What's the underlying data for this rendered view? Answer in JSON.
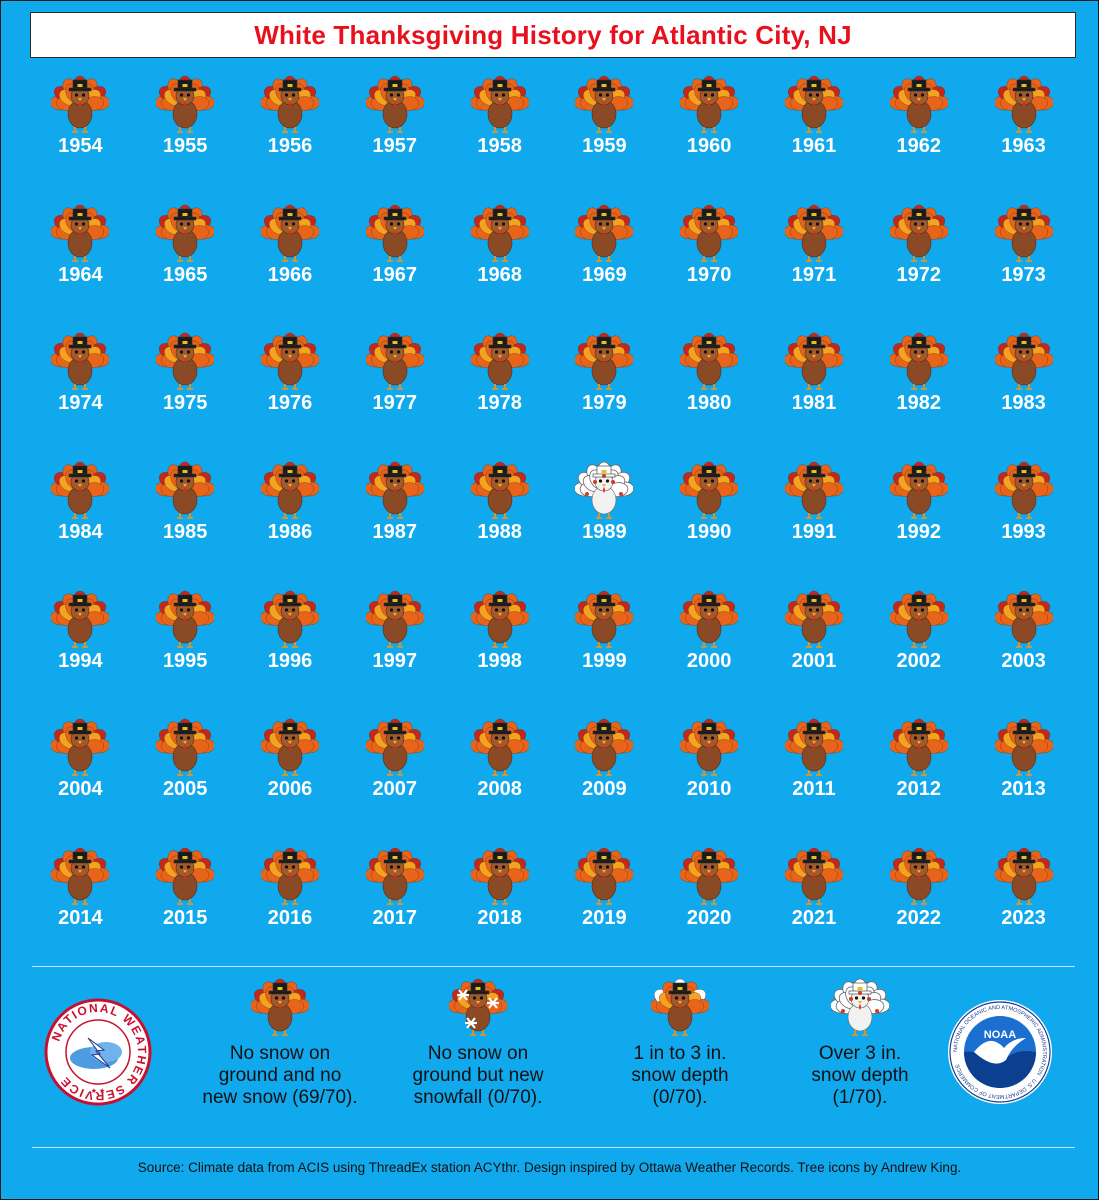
{
  "title": "White Thanksgiving History for Atlantic City, NJ",
  "years": [
    {
      "year": "1954",
      "cat": "none"
    },
    {
      "year": "1955",
      "cat": "none"
    },
    {
      "year": "1956",
      "cat": "none"
    },
    {
      "year": "1957",
      "cat": "none"
    },
    {
      "year": "1958",
      "cat": "none"
    },
    {
      "year": "1959",
      "cat": "none"
    },
    {
      "year": "1960",
      "cat": "none"
    },
    {
      "year": "1961",
      "cat": "none"
    },
    {
      "year": "1962",
      "cat": "none"
    },
    {
      "year": "1963",
      "cat": "none"
    },
    {
      "year": "1964",
      "cat": "none"
    },
    {
      "year": "1965",
      "cat": "none"
    },
    {
      "year": "1966",
      "cat": "none"
    },
    {
      "year": "1967",
      "cat": "none"
    },
    {
      "year": "1968",
      "cat": "none"
    },
    {
      "year": "1969",
      "cat": "none"
    },
    {
      "year": "1970",
      "cat": "none"
    },
    {
      "year": "1971",
      "cat": "none"
    },
    {
      "year": "1972",
      "cat": "none"
    },
    {
      "year": "1973",
      "cat": "none"
    },
    {
      "year": "1974",
      "cat": "none"
    },
    {
      "year": "1975",
      "cat": "none"
    },
    {
      "year": "1976",
      "cat": "none"
    },
    {
      "year": "1977",
      "cat": "none"
    },
    {
      "year": "1978",
      "cat": "none"
    },
    {
      "year": "1979",
      "cat": "none"
    },
    {
      "year": "1980",
      "cat": "none"
    },
    {
      "year": "1981",
      "cat": "none"
    },
    {
      "year": "1982",
      "cat": "none"
    },
    {
      "year": "1983",
      "cat": "none"
    },
    {
      "year": "1984",
      "cat": "none"
    },
    {
      "year": "1985",
      "cat": "none"
    },
    {
      "year": "1986",
      "cat": "none"
    },
    {
      "year": "1987",
      "cat": "none"
    },
    {
      "year": "1988",
      "cat": "none"
    },
    {
      "year": "1989",
      "cat": "over3"
    },
    {
      "year": "1990",
      "cat": "none"
    },
    {
      "year": "1991",
      "cat": "none"
    },
    {
      "year": "1992",
      "cat": "none"
    },
    {
      "year": "1993",
      "cat": "none"
    },
    {
      "year": "1994",
      "cat": "none"
    },
    {
      "year": "1995",
      "cat": "none"
    },
    {
      "year": "1996",
      "cat": "none"
    },
    {
      "year": "1997",
      "cat": "none"
    },
    {
      "year": "1998",
      "cat": "none"
    },
    {
      "year": "1999",
      "cat": "none"
    },
    {
      "year": "2000",
      "cat": "none"
    },
    {
      "year": "2001",
      "cat": "none"
    },
    {
      "year": "2002",
      "cat": "none"
    },
    {
      "year": "2003",
      "cat": "none"
    },
    {
      "year": "2004",
      "cat": "none"
    },
    {
      "year": "2005",
      "cat": "none"
    },
    {
      "year": "2006",
      "cat": "none"
    },
    {
      "year": "2007",
      "cat": "none"
    },
    {
      "year": "2008",
      "cat": "none"
    },
    {
      "year": "2009",
      "cat": "none"
    },
    {
      "year": "2010",
      "cat": "none"
    },
    {
      "year": "2011",
      "cat": "none"
    },
    {
      "year": "2012",
      "cat": "none"
    },
    {
      "year": "2013",
      "cat": "none"
    },
    {
      "year": "2014",
      "cat": "none"
    },
    {
      "year": "2015",
      "cat": "none"
    },
    {
      "year": "2016",
      "cat": "none"
    },
    {
      "year": "2017",
      "cat": "none"
    },
    {
      "year": "2018",
      "cat": "none"
    },
    {
      "year": "2019",
      "cat": "none"
    },
    {
      "year": "2020",
      "cat": "none"
    },
    {
      "year": "2021",
      "cat": "none"
    },
    {
      "year": "2022",
      "cat": "none"
    },
    {
      "year": "2023",
      "cat": "none"
    }
  ],
  "legend": [
    {
      "cat": "none",
      "text": "No snow on\nground and no\nnew snow (69/70)."
    },
    {
      "cat": "snowfall",
      "text": "No snow on\nground but new\nsnowfall (0/70)."
    },
    {
      "cat": "1to3",
      "text": "1 in to 3 in.\nsnow depth\n(0/70)."
    },
    {
      "cat": "over3",
      "text": "Over 3 in.\nsnow depth\n(1/70)."
    }
  ],
  "logos": {
    "nws_text": "NATIONAL WEATHER SERVICE",
    "noaa_text": "NOAA",
    "noaa_ring_text": "NATIONAL OCEANIC AND ATMOSPHERIC ADMINISTRATION · U.S. DEPARTMENT OF COMMERCE"
  },
  "source": "Source: Climate data from ACIS using ThreadEx station ACYthr. Design inspired by Ottawa Weather Records. Tree icons by Andrew King.",
  "colors": {
    "background": "#10a9ee",
    "title": "#e8101c",
    "year_text": "#ffffff"
  }
}
